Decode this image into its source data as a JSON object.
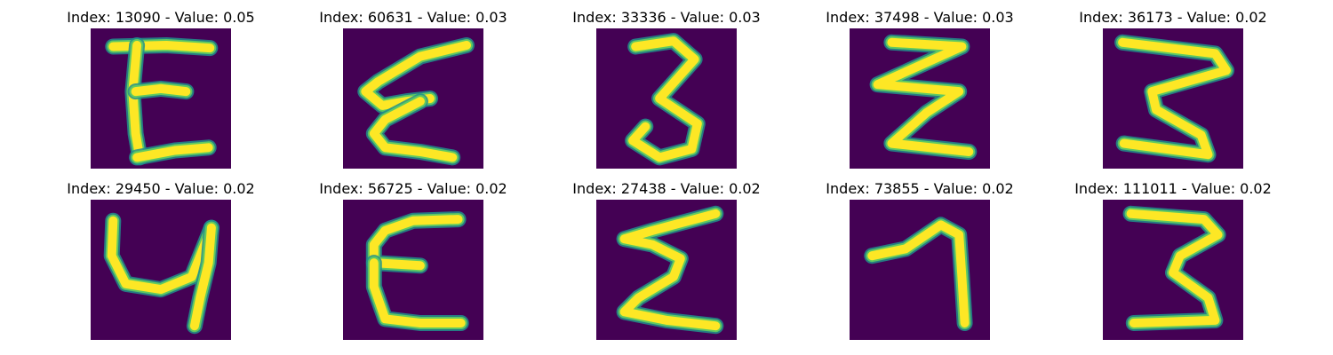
{
  "colors": {
    "background": "#440154",
    "stroke_edge": "#21918c",
    "stroke_mid": "#5ec962",
    "stroke_core": "#fde725"
  },
  "grid": [
    {
      "title": "Index: 13090 - Value: 0.05",
      "glyph": "letter-E-shape",
      "strokes": [
        [
          [
            0.16,
            0.13
          ],
          [
            0.54,
            0.12
          ],
          [
            0.85,
            0.14
          ]
        ],
        [
          [
            0.33,
            0.12
          ],
          [
            0.3,
            0.45
          ],
          [
            0.32,
            0.75
          ],
          [
            0.35,
            0.92
          ]
        ],
        [
          [
            0.32,
            0.45
          ],
          [
            0.5,
            0.43
          ],
          [
            0.68,
            0.45
          ]
        ],
        [
          [
            0.33,
            0.92
          ],
          [
            0.6,
            0.87
          ],
          [
            0.84,
            0.85
          ]
        ]
      ]
    },
    {
      "title": "Index: 60631 - Value: 0.03",
      "glyph": "epsilon-shape",
      "strokes": [
        [
          [
            0.88,
            0.12
          ],
          [
            0.55,
            0.2
          ],
          [
            0.25,
            0.38
          ],
          [
            0.16,
            0.45
          ],
          [
            0.28,
            0.55
          ],
          [
            0.45,
            0.52
          ],
          [
            0.62,
            0.5
          ]
        ],
        [
          [
            0.55,
            0.52
          ],
          [
            0.3,
            0.65
          ],
          [
            0.22,
            0.75
          ],
          [
            0.3,
            0.85
          ],
          [
            0.55,
            0.88
          ],
          [
            0.78,
            0.92
          ]
        ]
      ]
    },
    {
      "title": "Index: 33336 - Value: 0.03",
      "glyph": "digit-3-shape",
      "strokes": [
        [
          [
            0.28,
            0.13
          ],
          [
            0.55,
            0.09
          ],
          [
            0.7,
            0.22
          ],
          [
            0.45,
            0.5
          ],
          [
            0.72,
            0.68
          ],
          [
            0.68,
            0.86
          ],
          [
            0.45,
            0.92
          ],
          [
            0.26,
            0.8
          ],
          [
            0.35,
            0.7
          ]
        ]
      ]
    },
    {
      "title": "Index: 37498 - Value: 0.03",
      "glyph": "zigzag-3-shape",
      "strokes": [
        [
          [
            0.3,
            0.1
          ],
          [
            0.8,
            0.13
          ],
          [
            0.2,
            0.4
          ],
          [
            0.78,
            0.45
          ],
          [
            0.55,
            0.6
          ],
          [
            0.3,
            0.82
          ],
          [
            0.85,
            0.88
          ]
        ]
      ]
    },
    {
      "title": "Index: 36173 - Value: 0.02",
      "glyph": "digit-3-shape",
      "strokes": [
        [
          [
            0.14,
            0.1
          ],
          [
            0.8,
            0.18
          ],
          [
            0.88,
            0.3
          ],
          [
            0.35,
            0.45
          ],
          [
            0.38,
            0.58
          ],
          [
            0.7,
            0.76
          ],
          [
            0.75,
            0.9
          ],
          [
            0.15,
            0.82
          ]
        ]
      ]
    },
    {
      "title": "Index: 29450 - Value: 0.02",
      "glyph": "digit-4-shape",
      "strokes": [
        [
          [
            0.16,
            0.15
          ],
          [
            0.15,
            0.4
          ],
          [
            0.25,
            0.6
          ],
          [
            0.5,
            0.64
          ],
          [
            0.72,
            0.55
          ],
          [
            0.82,
            0.3
          ],
          [
            0.86,
            0.2
          ]
        ],
        [
          [
            0.86,
            0.2
          ],
          [
            0.84,
            0.45
          ],
          [
            0.78,
            0.7
          ],
          [
            0.74,
            0.9
          ]
        ]
      ]
    },
    {
      "title": "Index: 56725 - Value: 0.02",
      "glyph": "letter-E-shape",
      "strokes": [
        [
          [
            0.82,
            0.14
          ],
          [
            0.5,
            0.15
          ],
          [
            0.3,
            0.22
          ],
          [
            0.22,
            0.32
          ],
          [
            0.22,
            0.45
          ],
          [
            0.55,
            0.47
          ]
        ],
        [
          [
            0.22,
            0.45
          ],
          [
            0.22,
            0.62
          ],
          [
            0.3,
            0.85
          ],
          [
            0.55,
            0.88
          ],
          [
            0.84,
            0.88
          ]
        ]
      ]
    },
    {
      "title": "Index: 27438 - Value: 0.02",
      "glyph": "epsilon-shape",
      "strokes": [
        [
          [
            0.85,
            0.1
          ],
          [
            0.4,
            0.22
          ],
          [
            0.2,
            0.28
          ],
          [
            0.4,
            0.32
          ],
          [
            0.6,
            0.42
          ],
          [
            0.55,
            0.55
          ],
          [
            0.3,
            0.7
          ],
          [
            0.2,
            0.8
          ],
          [
            0.5,
            0.86
          ],
          [
            0.85,
            0.9
          ]
        ]
      ]
    },
    {
      "title": "Index: 73855 - Value: 0.02",
      "glyph": "digit-1-shape",
      "strokes": [
        [
          [
            0.16,
            0.4
          ],
          [
            0.4,
            0.35
          ],
          [
            0.65,
            0.18
          ],
          [
            0.78,
            0.25
          ],
          [
            0.8,
            0.55
          ],
          [
            0.82,
            0.88
          ]
        ]
      ]
    },
    {
      "title": "Index: 111011 - Value: 0.02",
      "glyph": "digit-3-shape",
      "strokes": [
        [
          [
            0.2,
            0.1
          ],
          [
            0.72,
            0.14
          ],
          [
            0.82,
            0.25
          ],
          [
            0.55,
            0.4
          ],
          [
            0.5,
            0.52
          ],
          [
            0.75,
            0.7
          ],
          [
            0.8,
            0.86
          ],
          [
            0.22,
            0.88
          ]
        ]
      ]
    }
  ]
}
